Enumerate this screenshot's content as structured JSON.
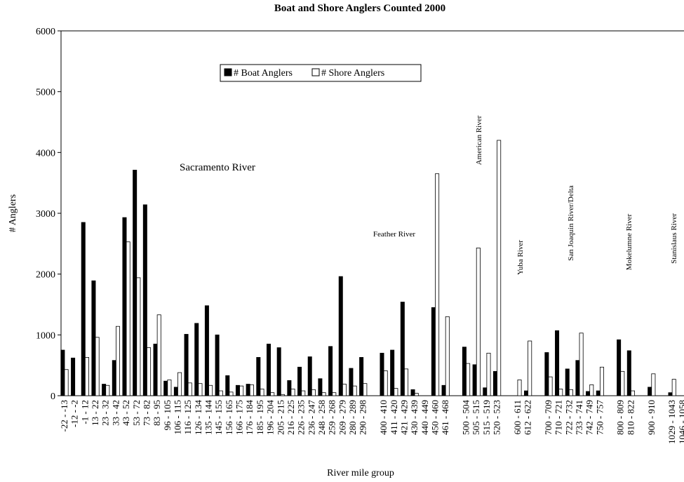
{
  "chart_data": {
    "type": "bar",
    "title": "Boat and Shore Anglers Counted 2000",
    "xlabel": "River mile group",
    "ylabel": "# Anglers",
    "categories": [
      "-22 - -13",
      "-12 - -2",
      "-1 - 12",
      "13 - 22",
      "23 - 32",
      "33 - 42",
      "43 - 52",
      "53 - 72",
      "73 - 82",
      "83 - 95",
      "96 - 105",
      "106 - 115",
      "116 - 125",
      "126 - 134",
      "135 - 144",
      "145 - 155",
      "156 - 165",
      "166 - 175",
      "176 - 184",
      "185 - 195",
      "196 - 204",
      "205 - 215",
      "216 - 225",
      "226 - 235",
      "236 - 247",
      "248 - 258",
      "259 - 268",
      "269 - 279",
      "280 - 289",
      "290 - 298",
      null,
      "400 - 410",
      "411 - 420",
      "421 - 429",
      "430 - 439",
      "440 - 449",
      "450 - 460",
      "461 - 468",
      null,
      "500 - 504",
      "505 - 515",
      "515 - 519",
      "520 - 523",
      null,
      "600 - 611",
      "612 - 622",
      null,
      "700 - 709",
      "710 - 721",
      "722 - 732",
      "733 - 741",
      "742 - 749",
      "750 - 757",
      null,
      "800 - 809",
      "810 - 822",
      null,
      "900 - 910",
      null,
      "1029 - 1043",
      "1046 - 1058"
    ],
    "series": [
      {
        "name": "# Boat Anglers",
        "color": "#000000",
        "values": [
          750,
          620,
          2850,
          1890,
          190,
          580,
          2930,
          3710,
          3140,
          850,
          240,
          140,
          1010,
          1190,
          1480,
          1000,
          330,
          170,
          190,
          630,
          850,
          790,
          250,
          470,
          640,
          280,
          810,
          1960,
          450,
          630,
          null,
          700,
          750,
          1540,
          100,
          0,
          1450,
          170,
          null,
          800,
          510,
          130,
          400,
          null,
          0,
          80,
          null,
          710,
          1070,
          440,
          580,
          70,
          80,
          null,
          920,
          740,
          null,
          140,
          null,
          50,
          null
        ]
      },
      {
        "name": "# Shore Anglers",
        "color": "#ffffff",
        "values": [
          430,
          0,
          630,
          960,
          170,
          1140,
          2530,
          1940,
          790,
          1330,
          260,
          380,
          210,
          200,
          170,
          80,
          60,
          160,
          180,
          110,
          50,
          20,
          110,
          80,
          100,
          50,
          50,
          190,
          160,
          200,
          null,
          410,
          120,
          440,
          40,
          0,
          3650,
          1300,
          null,
          530,
          2430,
          700,
          4200,
          null,
          260,
          900,
          null,
          310,
          110,
          100,
          1030,
          180,
          470,
          null,
          400,
          80,
          null,
          360,
          null,
          270,
          null
        ]
      }
    ],
    "ylim": [
      0,
      6000
    ],
    "yticks": [
      0,
      1000,
      2000,
      3000,
      4000,
      5000,
      6000
    ],
    "grid": false,
    "annotations": [
      "Sacramento River",
      "Feather River",
      "American River",
      "Yuba River",
      "San Joaquin River/Delta",
      "Mokelumne River",
      "Stanislaus River"
    ]
  }
}
